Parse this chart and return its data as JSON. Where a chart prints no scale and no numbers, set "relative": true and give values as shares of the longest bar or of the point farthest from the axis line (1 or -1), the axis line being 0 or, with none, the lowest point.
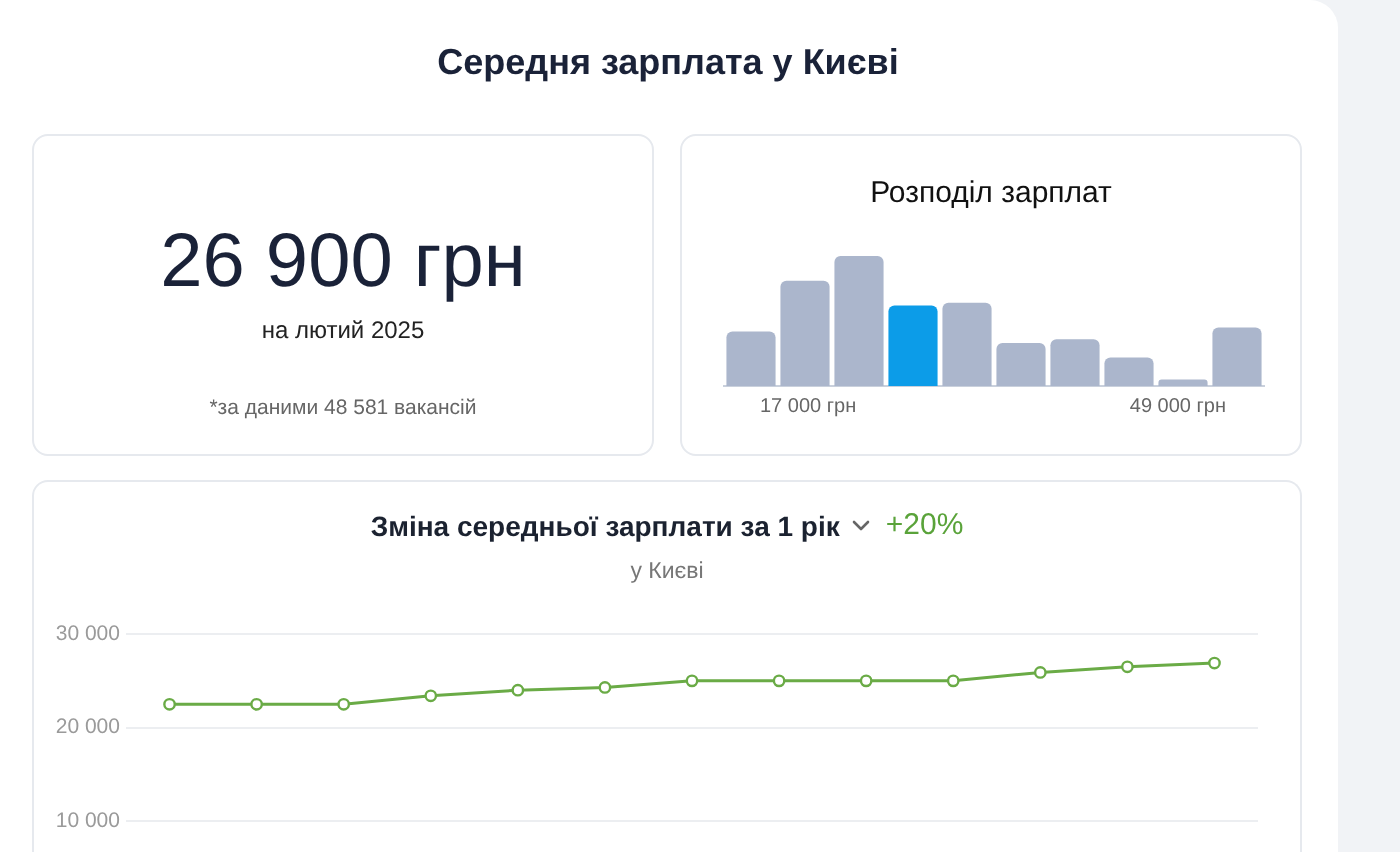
{
  "chart_data": [
    {
      "type": "other",
      "title": "Середня зарплата у Києві",
      "annotations": [
        "26 900 грн",
        "на лютий 2025",
        "*за даними 48 581 вакансій"
      ]
    },
    {
      "type": "bar",
      "title": "Розподіл зарплат",
      "relative": true,
      "categories": [
        null,
        null,
        null,
        null,
        null,
        null,
        null,
        null,
        null,
        null
      ],
      "values": [
        0.42,
        0.81,
        1,
        0.62,
        0.64,
        0.33,
        0.36,
        0.22,
        0.05,
        0.45
      ],
      "colors": [
        "#abb6cc",
        "#abb6cc",
        "#abb6cc",
        "#0c9ce8",
        "#abb6cc",
        "#abb6cc",
        "#abb6cc",
        "#abb6cc",
        "#abb6cc",
        "#abb6cc"
      ],
      "annotations": [
        "17 000 грн",
        "49 000 грн"
      ]
    },
    {
      "type": "line",
      "title": "Зміна середньої зарплати за 1 рік",
      "subtitle": "у Києві",
      "annotations": [
        "+20%"
      ],
      "categories": [
        null,
        null,
        null,
        null,
        null,
        null,
        null,
        null,
        null,
        null,
        null,
        null,
        null
      ],
      "series": [
        {
          "color": "#6aab46",
          "values": [
            22500,
            22500,
            22500,
            23400,
            24000,
            24300,
            25000,
            25000,
            25000,
            25000,
            25900,
            26500,
            26900
          ]
        }
      ],
      "ylim": [
        10000,
        30000
      ],
      "yticks": [
        {
          "value": 10000,
          "label": "10 000"
        },
        {
          "value": 20000,
          "label": "20 000"
        },
        {
          "value": 30000,
          "label": "30 000"
        }
      ],
      "grid": "y",
      "marker": "circle",
      "tick_labels": "y"
    }
  ]
}
